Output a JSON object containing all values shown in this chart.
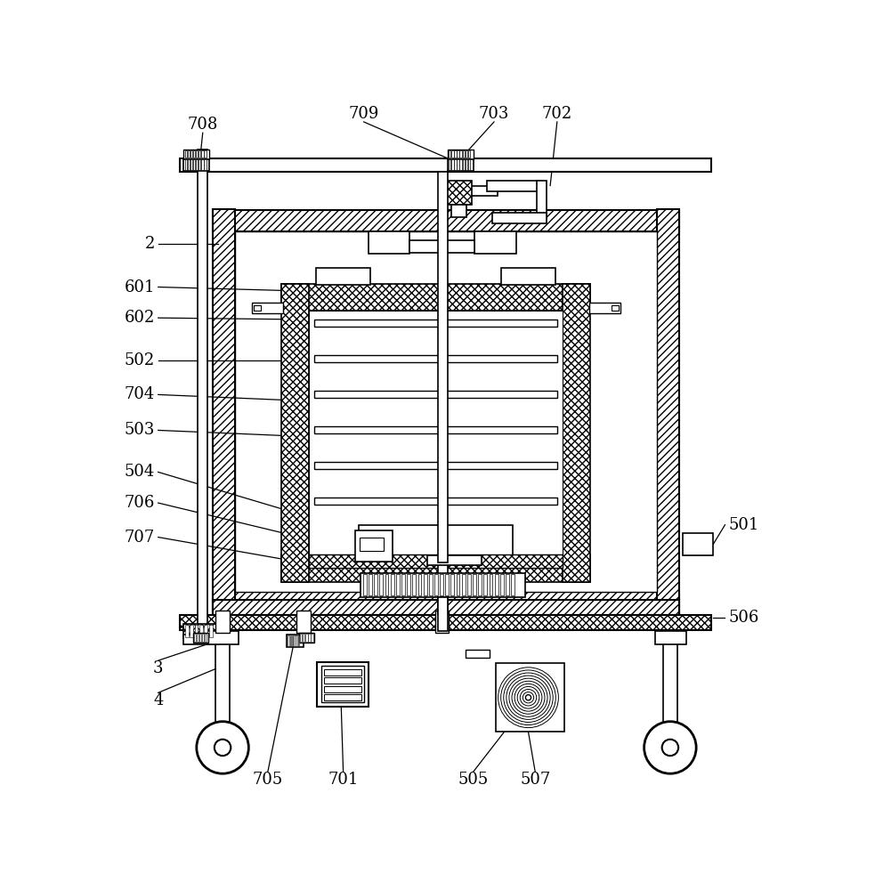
{
  "bg_color": "#ffffff",
  "fig_width": 9.83,
  "fig_height": 10.0,
  "dpi": 100,
  "labels_left": [
    [
      "2",
      62,
      200
    ],
    [
      "601",
      62,
      263
    ],
    [
      "602",
      62,
      308
    ],
    [
      "502",
      62,
      375
    ],
    [
      "704",
      62,
      428
    ],
    [
      "503",
      62,
      480
    ],
    [
      "504",
      62,
      533
    ],
    [
      "706",
      62,
      585
    ],
    [
      "707",
      62,
      635
    ]
  ],
  "labels_right": [
    [
      "501",
      895,
      610
    ],
    [
      "506",
      895,
      745
    ]
  ],
  "labels_top": [
    [
      "708",
      133,
      38
    ],
    [
      "709",
      368,
      22
    ],
    [
      "703",
      558,
      22
    ],
    [
      "702",
      650,
      22
    ]
  ],
  "labels_bottom": [
    [
      "3",
      62,
      808
    ],
    [
      "4",
      62,
      855
    ],
    [
      "705",
      228,
      970
    ],
    [
      "701",
      338,
      970
    ],
    [
      "505",
      528,
      970
    ],
    [
      "507",
      618,
      970
    ]
  ]
}
